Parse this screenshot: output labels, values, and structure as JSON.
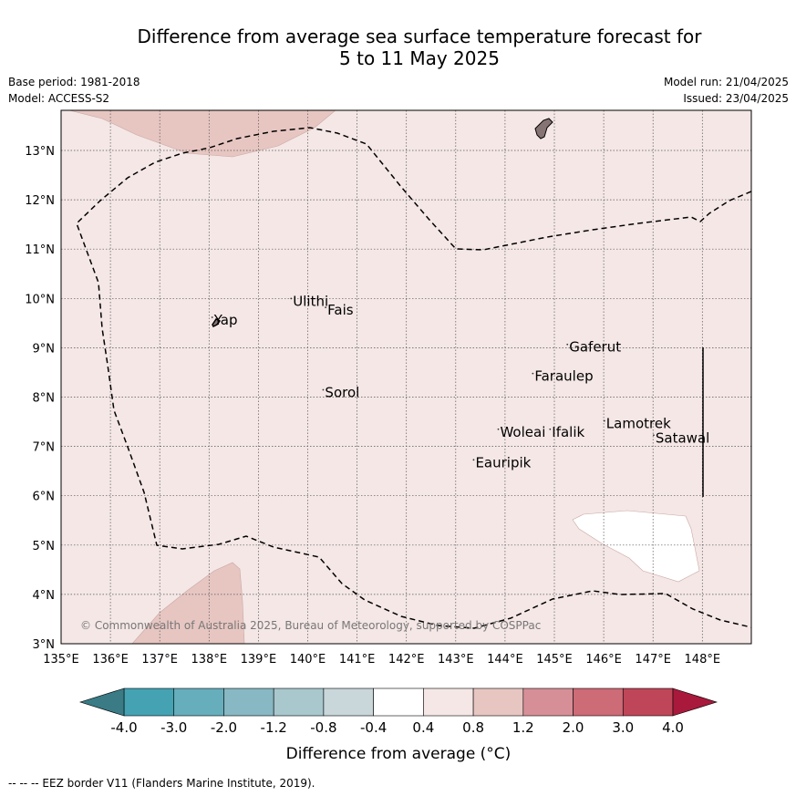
{
  "title_line1": "Difference from average sea surface temperature forecast for",
  "title_line2": "5 to 11 May 2025",
  "base_period": "Base period: 1981-2018",
  "model": "Model: ACCESS-S2",
  "model_run": "Model run: 21/04/2025",
  "issued": "Issued: 23/04/2025",
  "copyright": "© Commonwealth of Australia 2025, Bureau of Meteorology, supported by COSPPac",
  "footer": "--  --  -- EEZ border V11 (Flanders Marine Institute, 2019).",
  "map": {
    "lon_range": [
      135,
      149
    ],
    "lat_range": [
      3,
      13.8
    ],
    "lon_ticks": [
      "135°E",
      "136°E",
      "137°E",
      "138°E",
      "139°E",
      "140°E",
      "141°E",
      "142°E",
      "143°E",
      "144°E",
      "145°E",
      "146°E",
      "147°E",
      "148°E"
    ],
    "lat_ticks": [
      "3°N",
      "4°N",
      "5°N",
      "6°N",
      "7°N",
      "8°N",
      "9°N",
      "10°N",
      "11°N",
      "12°N",
      "13°N"
    ],
    "colors": {
      "background_anomaly": "#f4e7e6",
      "warm_anomaly": "#e7c6c2",
      "land": "#867474",
      "no_data": "#ffffff"
    },
    "places": [
      {
        "name": "Ulithi",
        "lon": 139.7,
        "lat": 9.85
      },
      {
        "name": "Fais",
        "lon": 140.4,
        "lat": 9.67
      },
      {
        "name": "Yap",
        "lon": 138.1,
        "lat": 9.47
      },
      {
        "name": "Gaferut",
        "lon": 145.3,
        "lat": 8.92
      },
      {
        "name": "Faraulep",
        "lon": 144.6,
        "lat": 8.33
      },
      {
        "name": "Sorol",
        "lon": 140.35,
        "lat": 8.0
      },
      {
        "name": "Lamotrek",
        "lon": 146.05,
        "lat": 7.37
      },
      {
        "name": "Woleai",
        "lon": 143.9,
        "lat": 7.2
      },
      {
        "name": "Ifalik",
        "lon": 144.95,
        "lat": 7.2
      },
      {
        "name": "Satawal",
        "lon": 147.05,
        "lat": 7.08
      },
      {
        "name": "Eauripik",
        "lon": 143.4,
        "lat": 6.58
      }
    ]
  },
  "colorbar": {
    "label": "Difference from average (°C)",
    "ticks": [
      "-4.0",
      "-3.0",
      "-2.0",
      "-1.2",
      "-0.8",
      "-0.4",
      "0.4",
      "0.8",
      "1.2",
      "2.0",
      "3.0",
      "4.0"
    ],
    "colors": [
      "#44a2b3",
      "#67aebc",
      "#87b8c3",
      "#a8c8cd",
      "#c9d6da",
      "#ffffff",
      "#f4e7e6",
      "#e7c6c2",
      "#d68f96",
      "#cd6b76",
      "#bf4658"
    ],
    "under_color": "#3a7b85",
    "over_color": "#a9193b"
  }
}
